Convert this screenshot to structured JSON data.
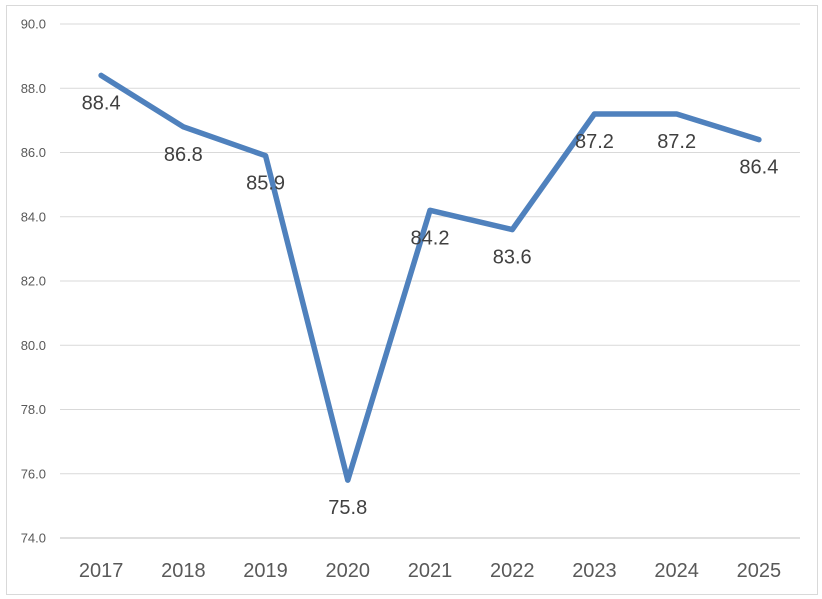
{
  "chart_data": {
    "type": "line",
    "categories": [
      "2017",
      "2018",
      "2019",
      "2020",
      "2021",
      "2022",
      "2023",
      "2024",
      "2025"
    ],
    "series": [
      {
        "values": [
          88.4,
          86.8,
          85.9,
          75.8,
          84.2,
          83.6,
          87.2,
          87.2,
          86.4
        ]
      }
    ],
    "data_labels": [
      "88.4",
      "86.8",
      "85.9",
      "75.8",
      "84.2",
      "83.6",
      "87.2",
      "87.2",
      "86.4"
    ],
    "y_ticks": [
      "74.0",
      "76.0",
      "78.0",
      "80.0",
      "82.0",
      "84.0",
      "86.0",
      "88.0",
      "90.0"
    ],
    "ylim": [
      74,
      90
    ],
    "grid": true,
    "legend": "none",
    "colors": {
      "line": "#4f81bd",
      "grid": "#d9d9d9",
      "axis": "#bfbfbf"
    }
  }
}
